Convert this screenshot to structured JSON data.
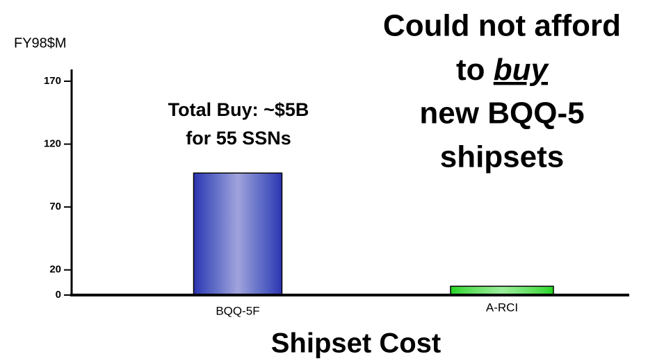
{
  "chart_data": {
    "type": "bar",
    "title": "Shipset Cost",
    "y_label": "FY98$M",
    "categories": [
      "BQQ-5F",
      "A-RCI"
    ],
    "values": [
      97,
      7
    ],
    "colors": [
      "#2e33b0",
      "#1fd61f"
    ],
    "ylim": [
      0,
      170
    ],
    "yticks": [
      0,
      20,
      70,
      120,
      170
    ],
    "grid": false,
    "note": [
      "Total Buy: ~$5B",
      "for 55 SSNs"
    ],
    "callout": {
      "line1": "Could not afford",
      "line2_prefix": "to",
      "line2_emphasis": "buy",
      "line3": "new BQQ-5",
      "line4": "shipsets"
    }
  }
}
